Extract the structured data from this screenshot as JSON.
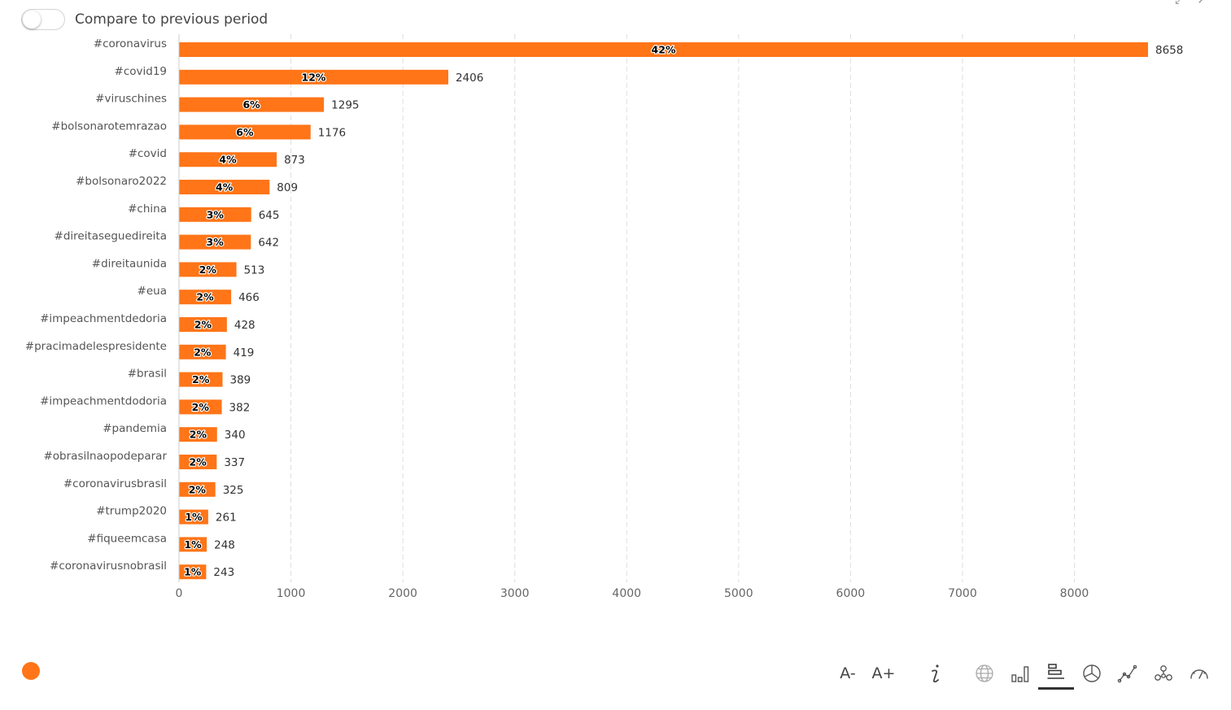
{
  "toggle": {
    "label": "Compare to previous period",
    "on": false
  },
  "colors": {
    "bar": "#ff7518",
    "grid": "#dddddd",
    "axis": "#cccccc",
    "legend_dot": "#ff7518"
  },
  "chart_data": {
    "type": "bar",
    "orientation": "horizontal",
    "categories": [
      "#coronavirus",
      "#covid19",
      "#viruschines",
      "#bolsonarotemrazao",
      "#covid",
      "#bolsonaro2022",
      "#china",
      "#direitaseguedireita",
      "#direitaunida",
      "#eua",
      "#impeachmentdedoria",
      "#pracimadelespresidente",
      "#brasil",
      "#impeachmentdodoria",
      "#pandemia",
      "#obrasilnaopodeparar",
      "#coronavirusbrasil",
      "#trump2020",
      "#fiqueemcasa",
      "#coronavirusnobrasil"
    ],
    "values": [
      8658,
      2406,
      1295,
      1176,
      873,
      809,
      645,
      642,
      513,
      466,
      428,
      419,
      389,
      382,
      340,
      337,
      325,
      261,
      248,
      243
    ],
    "percent_labels": [
      "42%",
      "12%",
      "6%",
      "6%",
      "4%",
      "4%",
      "3%",
      "3%",
      "2%",
      "2%",
      "2%",
      "2%",
      "2%",
      "2%",
      "2%",
      "2%",
      "2%",
      "1%",
      "1%",
      "1%"
    ],
    "value_labels": [
      "8658",
      "2406",
      "1295",
      "1176",
      "873",
      "809",
      "645",
      "642",
      "513",
      "466",
      "428",
      "419",
      "389",
      "382",
      "340",
      "337",
      "325",
      "261",
      "248",
      "243"
    ],
    "xticks": [
      "0",
      "1000",
      "2000",
      "3000",
      "4000",
      "5000",
      "6000",
      "7000",
      "8000"
    ],
    "xlim": [
      0,
      8800
    ],
    "grid": true,
    "legend": "bottom-left"
  },
  "toolbar": {
    "font_decrease": "A-",
    "font_increase": "A+",
    "icons": [
      "info-icon",
      "globe-icon",
      "column-chart-icon",
      "bar-chart-icon",
      "pie-chart-icon",
      "line-chart-icon",
      "network-icon",
      "gauge-icon"
    ],
    "active": "bar-chart-icon"
  }
}
